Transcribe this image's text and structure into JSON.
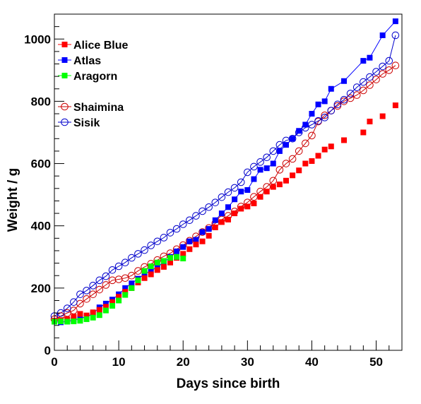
{
  "chart_data": {
    "type": "scatter",
    "xlabel": "Days since birth",
    "ylabel": "Weight / g",
    "xlim": [
      0,
      54
    ],
    "ylim": [
      0,
      1080
    ],
    "xticks": [
      0,
      10,
      20,
      30,
      40,
      50
    ],
    "yticks": [
      0,
      200,
      400,
      600,
      800,
      1000
    ],
    "grid": false,
    "legend_position": "top-left",
    "series": [
      {
        "name": "Alice Blue",
        "color": "#ff0000",
        "marker": "filled-square",
        "line": false,
        "points": [
          [
            0,
            95
          ],
          [
            1,
            97
          ],
          [
            2,
            100
          ],
          [
            3,
            108
          ],
          [
            4,
            117
          ],
          [
            5,
            112
          ],
          [
            6,
            122
          ],
          [
            7,
            130
          ],
          [
            8,
            140
          ],
          [
            9,
            155
          ],
          [
            10,
            172
          ],
          [
            11,
            188
          ],
          [
            12,
            200
          ],
          [
            13,
            218
          ],
          [
            14,
            232
          ],
          [
            15,
            244
          ],
          [
            16,
            258
          ],
          [
            17,
            268
          ],
          [
            18,
            282
          ],
          [
            19,
            297
          ],
          [
            20,
            310
          ],
          [
            21,
            325
          ],
          [
            22,
            340
          ],
          [
            23,
            350
          ],
          [
            24,
            368
          ],
          [
            25,
            395
          ],
          [
            26,
            412
          ],
          [
            27,
            420
          ],
          [
            28,
            440
          ],
          [
            29,
            455
          ],
          [
            30,
            462
          ],
          [
            31,
            472
          ],
          [
            32,
            493
          ],
          [
            33,
            510
          ],
          [
            34,
            525
          ],
          [
            35,
            533
          ],
          [
            36,
            545
          ],
          [
            37,
            562
          ],
          [
            38,
            578
          ],
          [
            39,
            600
          ],
          [
            40,
            608
          ],
          [
            41,
            625
          ],
          [
            42,
            645
          ],
          [
            43,
            655
          ],
          [
            45,
            675
          ],
          [
            48,
            700
          ],
          [
            49,
            735
          ],
          [
            51,
            752
          ],
          [
            53,
            787
          ]
        ]
      },
      {
        "name": "Atlas",
        "color": "#0000ff",
        "marker": "filled-square",
        "line": true,
        "points": [
          [
            0,
            92
          ],
          [
            1,
            90
          ],
          [
            2,
            93
          ],
          [
            3,
            97
          ],
          [
            4,
            102
          ],
          [
            5,
            108
          ],
          [
            6,
            118
          ],
          [
            7,
            138
          ],
          [
            8,
            150
          ],
          [
            9,
            163
          ],
          [
            10,
            180
          ],
          [
            11,
            200
          ],
          [
            12,
            215
          ],
          [
            13,
            230
          ],
          [
            14,
            245
          ],
          [
            15,
            256
          ],
          [
            16,
            268
          ],
          [
            17,
            282
          ],
          [
            18,
            300
          ],
          [
            19,
            318
          ],
          [
            20,
            332
          ],
          [
            21,
            350
          ],
          [
            22,
            355
          ],
          [
            23,
            380
          ],
          [
            24,
            390
          ],
          [
            25,
            418
          ],
          [
            26,
            440
          ],
          [
            27,
            460
          ],
          [
            28,
            485
          ],
          [
            29,
            510
          ],
          [
            30,
            515
          ],
          [
            31,
            550
          ],
          [
            32,
            580
          ],
          [
            33,
            585
          ],
          [
            34,
            600
          ],
          [
            35,
            640
          ],
          [
            36,
            660
          ],
          [
            37,
            680
          ],
          [
            38,
            705
          ],
          [
            39,
            725
          ],
          [
            40,
            760
          ],
          [
            41,
            790
          ],
          [
            42,
            800
          ],
          [
            43,
            840
          ],
          [
            45,
            865
          ],
          [
            48,
            930
          ],
          [
            49,
            940
          ],
          [
            51,
            1012
          ],
          [
            53,
            1057
          ]
        ]
      },
      {
        "name": "Aragorn",
        "color": "#00ff00",
        "marker": "filled-square",
        "line": false,
        "points": [
          [
            0,
            92
          ],
          [
            1,
            93
          ],
          [
            2,
            92
          ],
          [
            3,
            93
          ],
          [
            4,
            95
          ],
          [
            5,
            100
          ],
          [
            6,
            105
          ],
          [
            7,
            113
          ],
          [
            8,
            128
          ],
          [
            9,
            143
          ],
          [
            10,
            160
          ],
          [
            11,
            178
          ],
          [
            12,
            200
          ],
          [
            13,
            225
          ],
          [
            14,
            255
          ],
          [
            15,
            270
          ],
          [
            16,
            282
          ],
          [
            17,
            287
          ],
          [
            18,
            297
          ],
          [
            19,
            300
          ],
          [
            20,
            295
          ]
        ]
      },
      {
        "name": "Shaimina",
        "color": "#cc0000",
        "marker": "open-circle",
        "line": true,
        "points": [
          [
            0,
            100
          ],
          [
            1,
            110
          ],
          [
            2,
            120
          ],
          [
            3,
            128
          ],
          [
            4,
            150
          ],
          [
            5,
            165
          ],
          [
            6,
            180
          ],
          [
            7,
            195
          ],
          [
            8,
            210
          ],
          [
            9,
            225
          ],
          [
            10,
            228
          ],
          [
            11,
            232
          ],
          [
            12,
            240
          ],
          [
            13,
            255
          ],
          [
            14,
            268
          ],
          [
            15,
            278
          ],
          [
            16,
            290
          ],
          [
            17,
            302
          ],
          [
            18,
            312
          ],
          [
            19,
            325
          ],
          [
            20,
            338
          ],
          [
            21,
            352
          ],
          [
            22,
            366
          ],
          [
            23,
            380
          ],
          [
            24,
            393
          ],
          [
            25,
            408
          ],
          [
            26,
            420
          ],
          [
            27,
            432
          ],
          [
            28,
            446
          ],
          [
            29,
            462
          ],
          [
            30,
            475
          ],
          [
            31,
            493
          ],
          [
            32,
            510
          ],
          [
            33,
            525
          ],
          [
            34,
            545
          ],
          [
            35,
            580
          ],
          [
            36,
            600
          ],
          [
            37,
            615
          ],
          [
            38,
            640
          ],
          [
            39,
            665
          ],
          [
            40,
            690
          ],
          [
            41,
            735
          ],
          [
            42,
            755
          ],
          [
            43,
            770
          ],
          [
            44,
            785
          ],
          [
            45,
            800
          ],
          [
            46,
            810
          ],
          [
            47,
            820
          ],
          [
            48,
            835
          ],
          [
            49,
            852
          ],
          [
            50,
            870
          ],
          [
            51,
            888
          ],
          [
            52,
            900
          ],
          [
            53,
            915
          ]
        ]
      },
      {
        "name": "Sisik",
        "color": "#0000cc",
        "marker": "open-circle",
        "line": true,
        "points": [
          [
            0,
            110
          ],
          [
            1,
            120
          ],
          [
            2,
            135
          ],
          [
            3,
            155
          ],
          [
            4,
            180
          ],
          [
            5,
            192
          ],
          [
            6,
            208
          ],
          [
            7,
            225
          ],
          [
            8,
            238
          ],
          [
            9,
            258
          ],
          [
            10,
            270
          ],
          [
            11,
            282
          ],
          [
            12,
            297
          ],
          [
            13,
            310
          ],
          [
            14,
            322
          ],
          [
            15,
            337
          ],
          [
            16,
            350
          ],
          [
            17,
            362
          ],
          [
            18,
            378
          ],
          [
            19,
            390
          ],
          [
            20,
            405
          ],
          [
            21,
            418
          ],
          [
            22,
            432
          ],
          [
            23,
            447
          ],
          [
            24,
            460
          ],
          [
            25,
            475
          ],
          [
            26,
            492
          ],
          [
            27,
            508
          ],
          [
            28,
            522
          ],
          [
            29,
            540
          ],
          [
            30,
            572
          ],
          [
            31,
            590
          ],
          [
            32,
            605
          ],
          [
            33,
            620
          ],
          [
            34,
            640
          ],
          [
            35,
            660
          ],
          [
            36,
            674
          ],
          [
            37,
            680
          ],
          [
            38,
            700
          ],
          [
            39,
            715
          ],
          [
            40,
            725
          ],
          [
            41,
            737
          ],
          [
            42,
            748
          ],
          [
            43,
            770
          ],
          [
            44,
            790
          ],
          [
            45,
            805
          ],
          [
            46,
            825
          ],
          [
            47,
            845
          ],
          [
            48,
            862
          ],
          [
            49,
            878
          ],
          [
            50,
            895
          ],
          [
            51,
            912
          ],
          [
            52,
            930
          ],
          [
            53,
            1012
          ]
        ]
      }
    ]
  }
}
